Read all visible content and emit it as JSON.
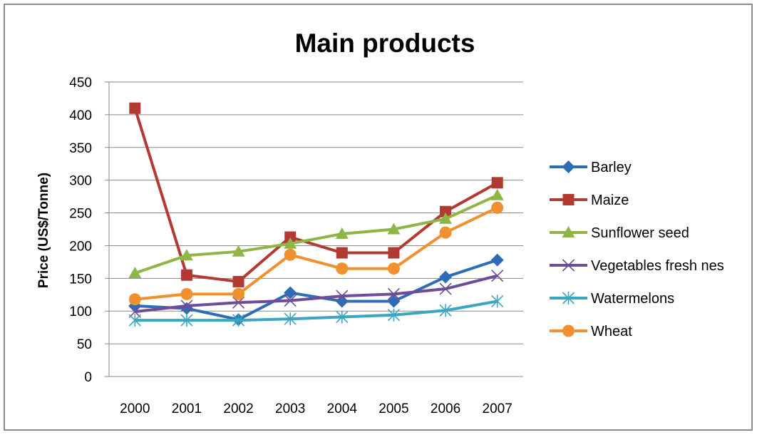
{
  "chart_data": {
    "type": "line",
    "title": "Main products",
    "xlabel": "",
    "ylabel": "Price (US$/Tonne)",
    "categories": [
      "2000",
      "2001",
      "2002",
      "2003",
      "2004",
      "2005",
      "2006",
      "2007"
    ],
    "ylim": [
      0,
      450
    ],
    "yticks": [
      0,
      50,
      100,
      150,
      200,
      250,
      300,
      350,
      400,
      450
    ],
    "grid": "horizontal",
    "legend": "right",
    "series": [
      {
        "name": "Barley",
        "color": "#2e6db4",
        "marker": "diamond",
        "values": [
          108,
          104,
          87,
          128,
          115,
          115,
          152,
          178
        ]
      },
      {
        "name": "Maize",
        "color": "#b23a32",
        "marker": "square",
        "values": [
          410,
          155,
          145,
          213,
          189,
          189,
          252,
          296
        ]
      },
      {
        "name": "Sunflower seed",
        "color": "#8fb546",
        "marker": "triangle",
        "values": [
          158,
          185,
          191,
          203,
          218,
          225,
          241,
          277
        ]
      },
      {
        "name": "Vegetables fresh nes",
        "color": "#6e4c98",
        "marker": "x",
        "values": [
          99,
          108,
          113,
          116,
          123,
          126,
          134,
          154
        ]
      },
      {
        "name": "Watermelons",
        "color": "#3aa6bf",
        "marker": "star",
        "values": [
          86,
          86,
          86,
          88,
          91,
          94,
          101,
          115
        ]
      },
      {
        "name": "Wheat",
        "color": "#f0902f",
        "marker": "circle",
        "values": [
          118,
          126,
          126,
          186,
          165,
          165,
          220,
          258
        ]
      }
    ]
  }
}
